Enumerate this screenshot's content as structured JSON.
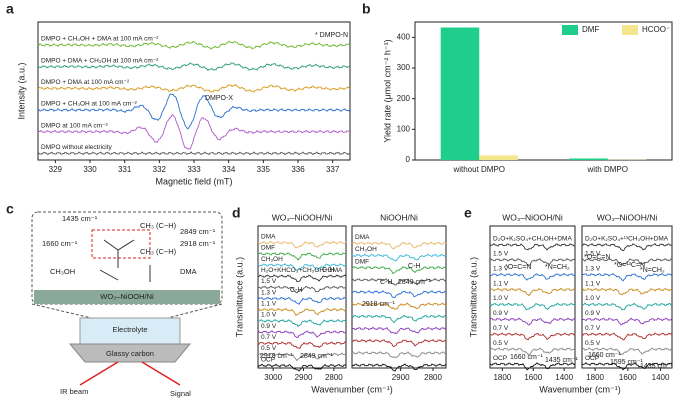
{
  "chart_data": [
    {
      "panel": "a",
      "type": "spectra",
      "xlabel": "Magnetic field (mT)",
      "ylabel": "Intensity (a.u.)",
      "xlim": [
        328.5,
        337.5
      ],
      "xticks": [
        329,
        330,
        331,
        332,
        333,
        334,
        335,
        336,
        337
      ],
      "annotations": [
        "DMPO-X",
        "* DMPO-N"
      ],
      "series": [
        {
          "name": "DMPO + CH₃OH + DMA at 100 mA cm⁻²",
          "color": "#6ab82e"
        },
        {
          "name": "DMPO + DMA + CH₃OH at 100 mA cm⁻²",
          "color": "#2a9d6e"
        },
        {
          "name": "DMPO + DMA at 100 mA cm⁻²",
          "color": "#d89a1a"
        },
        {
          "name": "DMPO + CH₃OH at 100 mA cm⁻²",
          "color": "#2a6fd1"
        },
        {
          "name": "DMPO at 100 mA cm⁻²",
          "color": "#b05ac8"
        },
        {
          "name": "DMPO without electricity",
          "color": "#555555"
        }
      ]
    },
    {
      "panel": "b",
      "type": "bar",
      "ylabel": "Yield rate (μmol cm⁻² h⁻¹)",
      "categories": [
        "without DMPO",
        "with DMPO"
      ],
      "ylim": [
        0,
        450
      ],
      "yticks": [
        0,
        100,
        200,
        300,
        400
      ],
      "legend": "upper right",
      "series": [
        {
          "name": "DMF",
          "color": "#1fce8a",
          "values": [
            432,
            5
          ]
        },
        {
          "name": "HCOO⁻",
          "color": "#f3e68c",
          "values": [
            15,
            1
          ]
        }
      ]
    },
    {
      "panel": "d",
      "type": "spectra",
      "title": "WO₃–NiOOH/Ni",
      "xlabel": "Wavenumber (cm⁻¹)",
      "ylabel": "Transmittance (a.u.)",
      "xlim": [
        3050,
        2760
      ],
      "xticks": [
        3000,
        2900,
        2800
      ],
      "annotations": [
        "C-H",
        "C-H",
        "2918 cm⁻¹",
        "2849 cm⁻¹"
      ],
      "series": [
        {
          "name": "DMA",
          "color": "#e7b86a"
        },
        {
          "name": "DMF",
          "color": "#3aa843"
        },
        {
          "name": "CH₃OH",
          "color": "#3bb6d8"
        },
        {
          "name": "H₂O+KHCO₃+CH₃OH+DMA",
          "color": "#333333"
        },
        {
          "name": "1.5 V",
          "color": "#555555"
        },
        {
          "name": "1.3 V",
          "color": "#2a6fd1"
        },
        {
          "name": "1.1 V",
          "color": "#c98a1a"
        },
        {
          "name": "1.0 V",
          "color": "#1aa39a"
        },
        {
          "name": "0.9 V",
          "color": "#8a3ab8"
        },
        {
          "name": "0.7 V",
          "color": "#b02a2a"
        },
        {
          "name": "0.5 V",
          "color": "#888888"
        },
        {
          "name": "OCP",
          "color": "#111111"
        }
      ]
    },
    {
      "type": "spectra",
      "title": "NiOOH/Ni",
      "xlim": [
        3050,
        2760
      ],
      "xticks": [
        2900,
        2800
      ],
      "annotations": [
        "C-H",
        "C-H",
        "2918 cm⁻¹",
        "2849 cm⁻¹"
      ],
      "series": [
        {
          "name": "DMA",
          "color": "#e7b86a"
        },
        {
          "name": "CH₃OH",
          "color": "#3bb6d8"
        },
        {
          "name": "DMF",
          "color": "#3aa843"
        },
        {
          "name": null,
          "color": "#555555"
        },
        {
          "name": null,
          "color": "#2a6fd1"
        },
        {
          "name": null,
          "color": "#c98a1a"
        },
        {
          "name": null,
          "color": "#1aa39a"
        },
        {
          "name": null,
          "color": "#8a3ab8"
        },
        {
          "name": null,
          "color": "#b02a2a"
        },
        {
          "name": null,
          "color": "#888888"
        },
        {
          "name": null,
          "color": "#111111"
        }
      ]
    },
    {
      "panel": "e",
      "type": "spectra",
      "title": "WO₃–NiOOH/Ni",
      "xlabel": "Wavenumber (cm⁻¹)",
      "ylabel": "Transmittance (a.u.)",
      "xlim": [
        1880,
        1330
      ],
      "xticks": [
        1800,
        1600,
        1400
      ],
      "annotations": [
        "*O=C=N",
        "*N=CH₂",
        "1660 cm⁻¹",
        "1435 cm⁻¹"
      ],
      "series": [
        {
          "name": "D₂O+K₂SO₄+CH₃OH+DMA",
          "color": "#333333"
        },
        {
          "name": "1.5 V",
          "color": "#555555"
        },
        {
          "name": "1.3 V",
          "color": "#2a6fd1"
        },
        {
          "name": "1.1 V",
          "color": "#c98a1a"
        },
        {
          "name": "1.0 V",
          "color": "#1aa39a"
        },
        {
          "name": "0.9 V",
          "color": "#8a3ab8"
        },
        {
          "name": "0.7 V",
          "color": "#b02a2a"
        },
        {
          "name": "0.5 V",
          "color": "#888888"
        },
        {
          "name": "OCP",
          "color": "#111111"
        }
      ]
    },
    {
      "type": "spectra",
      "title": "WO₃–NiOOH/Ni",
      "xlim": [
        1880,
        1330
      ],
      "xticks": [
        1800,
        1600,
        1400
      ],
      "annotations": [
        "*O=¹³C=N",
        "*O=C=N",
        "*N=CH₂",
        "1660 cm⁻¹",
        "1595 cm⁻¹",
        "1435 cm⁻¹"
      ],
      "series": [
        {
          "name": "D₂O+K₂SO₄+¹³CH₃OH+DMA",
          "color": "#333333"
        },
        {
          "name": "1.5 V",
          "color": "#555555"
        },
        {
          "name": "1.3 V",
          "color": "#2a6fd1"
        },
        {
          "name": "1.1 V",
          "color": "#c98a1a"
        },
        {
          "name": "1.0 V",
          "color": "#1aa39a"
        },
        {
          "name": "0.9 V",
          "color": "#8a3ab8"
        },
        {
          "name": "0.7 V",
          "color": "#b02a2a"
        },
        {
          "name": "0.5 V",
          "color": "#888888"
        },
        {
          "name": "OCP",
          "color": "#111111"
        }
      ]
    }
  ],
  "diagram": {
    "panel": "c",
    "peak_1435": "1435 cm⁻¹",
    "peak_1660": "1660 cm⁻¹",
    "peak_2849": "2849 cm⁻¹",
    "peak_2918": "2918 cm⁻¹",
    "ch_1": "CH₃ (C−H)",
    "ch_2": "CH₃ (C−H)",
    "methanol": "CH₃OH",
    "dma": "DMA",
    "catalyst": "WO₃–NiOOH/Ni",
    "electrolyte": "Electrolyte",
    "glassy_carbon": "Glassy carbon",
    "ir_beam": "IR beam",
    "signal": "Signal"
  }
}
